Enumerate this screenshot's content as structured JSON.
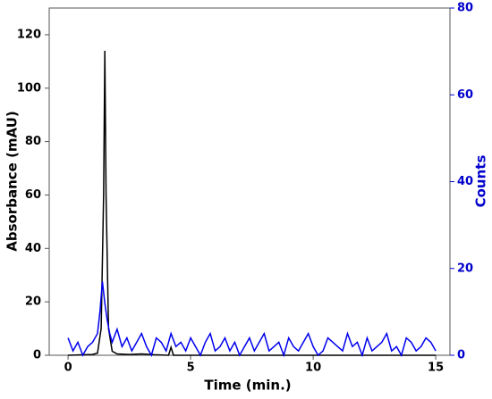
{
  "chart_data": {
    "type": "line",
    "xlabel": "Time (min.)",
    "ylabel": "Absorbance (mAU)",
    "y2label": "Counts",
    "xlim": [
      -0.77,
      15.58
    ],
    "xticks": [
      0,
      5,
      10,
      15
    ],
    "ylim": [
      0,
      130
    ],
    "yticks": [
      0,
      20,
      40,
      60,
      80,
      100,
      120
    ],
    "y2lim": [
      0,
      80
    ],
    "y2ticks": [
      0,
      20,
      40,
      60,
      80
    ],
    "y2color": "#0000cc",
    "series": [
      {
        "name": "Absorbance",
        "color": "#000000",
        "x": [
          0,
          1.0,
          1.2,
          1.35,
          1.45,
          1.5,
          1.55,
          1.65,
          1.8,
          2.0,
          2.5,
          3.0,
          3.5,
          4.1,
          4.2,
          4.3,
          5.0,
          10.0,
          15.0
        ],
        "values": [
          0,
          0.3,
          0.8,
          10,
          60,
          114,
          60,
          10,
          1.5,
          0.5,
          0.3,
          0.5,
          0.2,
          0,
          3,
          0,
          0,
          0,
          0
        ]
      },
      {
        "name": "Counts",
        "color": "#0000ee",
        "axis": "y2",
        "x": [
          0,
          0.2,
          0.4,
          0.6,
          0.8,
          1.0,
          1.2,
          1.3,
          1.4,
          1.5,
          1.6,
          1.7,
          1.8,
          2.0,
          2.2,
          2.4,
          2.6,
          2.8,
          3.0,
          3.2,
          3.4,
          3.6,
          3.8,
          4.0,
          4.2,
          4.4,
          4.6,
          4.8,
          5.0,
          5.2,
          5.4,
          5.6,
          5.8,
          6.0,
          6.2,
          6.4,
          6.6,
          6.8,
          7.0,
          7.2,
          7.4,
          7.6,
          7.8,
          8.0,
          8.2,
          8.4,
          8.6,
          8.8,
          9.0,
          9.2,
          9.4,
          9.6,
          9.8,
          10.0,
          10.2,
          10.4,
          10.6,
          10.8,
          11.0,
          11.2,
          11.4,
          11.6,
          11.8,
          12.0,
          12.2,
          12.4,
          12.6,
          12.8,
          13.0,
          13.2,
          13.4,
          13.6,
          13.8,
          14.0,
          14.2,
          14.4,
          14.6,
          14.8,
          15.0
        ],
        "values": [
          4,
          1,
          3,
          0,
          2,
          3,
          5,
          10,
          17,
          12,
          8,
          5,
          3,
          6,
          2,
          4,
          1,
          3,
          5,
          2,
          0,
          4,
          3,
          1,
          5,
          2,
          3,
          1,
          4,
          2,
          0,
          3,
          5,
          1,
          2,
          4,
          1,
          3,
          0,
          2,
          4,
          1,
          3,
          5,
          1,
          2,
          3,
          0,
          4,
          2,
          1,
          3,
          5,
          2,
          0,
          1,
          4,
          3,
          2,
          1,
          5,
          2,
          3,
          0,
          4,
          1,
          2,
          3,
          5,
          1,
          2,
          0,
          4,
          3,
          1,
          2,
          4,
          3,
          1
        ]
      }
    ]
  }
}
